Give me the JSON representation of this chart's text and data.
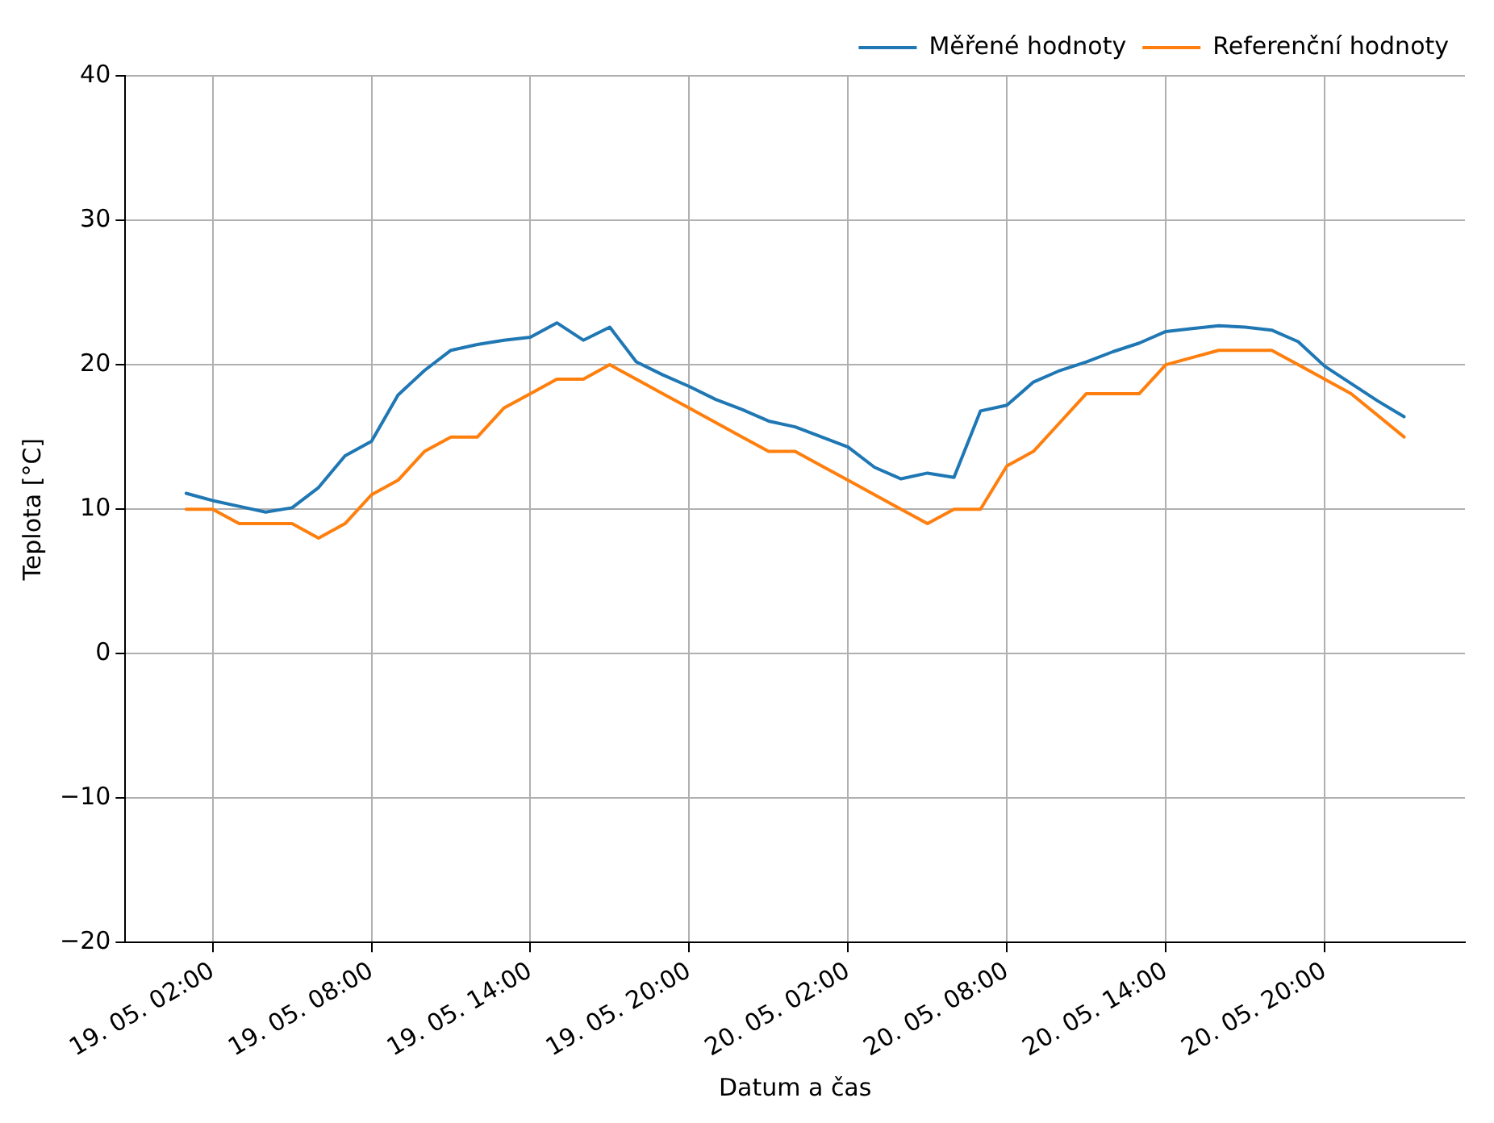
{
  "chart_data": {
    "type": "line",
    "xlabel": "Datum a čas",
    "ylabel": "Teplota [°C]",
    "categories": [
      null,
      "19. 05. 02:00",
      null,
      null,
      null,
      null,
      null,
      "19. 05. 08:00",
      null,
      null,
      null,
      null,
      null,
      "19. 05. 14:00",
      null,
      null,
      null,
      null,
      null,
      "19. 05. 20:00",
      null,
      null,
      null,
      null,
      null,
      "20. 05. 02:00",
      null,
      null,
      null,
      null,
      null,
      "20. 05. 08:00",
      null,
      null,
      null,
      null,
      null,
      "20. 05. 14:00",
      null,
      null,
      null,
      null,
      null,
      "20. 05. 20:00",
      null,
      null,
      null
    ],
    "series": [
      {
        "name": "Měřené hodnoty",
        "color": "#1f77b4",
        "values": [
          11.1,
          10.6,
          10.2,
          9.8,
          10.1,
          11.5,
          13.7,
          14.7,
          17.9,
          19.6,
          21.0,
          21.4,
          21.7,
          21.9,
          22.9,
          21.7,
          22.6,
          20.2,
          19.3,
          18.5,
          17.6,
          16.9,
          16.1,
          15.7,
          15.0,
          14.3,
          12.9,
          12.1,
          12.5,
          12.2,
          16.8,
          17.2,
          18.8,
          19.6,
          20.2,
          20.9,
          21.5,
          22.3,
          22.5,
          22.7,
          22.6,
          22.4,
          21.6,
          19.9,
          18.7,
          17.5,
          16.4
        ]
      },
      {
        "name": "Referenční hodnoty",
        "color": "#ff7f0e",
        "values": [
          10,
          10,
          9,
          9,
          9,
          8,
          9,
          11,
          12,
          14,
          15,
          15,
          17,
          18,
          19,
          19,
          20,
          19,
          18,
          17,
          16,
          15,
          14,
          14,
          13,
          12,
          11,
          10,
          9,
          10,
          10,
          13,
          14,
          16,
          18,
          18,
          18,
          20,
          20.5,
          21,
          21,
          21,
          20,
          19,
          18,
          16.5,
          15
        ]
      }
    ],
    "ylim": [
      -20,
      40
    ],
    "yticks": [
      -20,
      -10,
      0,
      10,
      20,
      30,
      40
    ],
    "grid": true,
    "legend": "top right",
    "marker": "none",
    "line_style": "solid"
  }
}
